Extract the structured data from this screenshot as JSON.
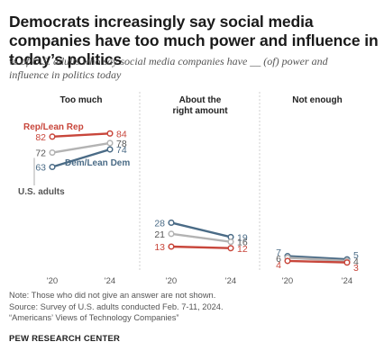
{
  "title": "Democrats increasingly say social media companies have too much power and influence in today’s politics",
  "subtitle": "% of U.S. adults who say social media companies have __ (of) power and influence in politics today",
  "note_lines": [
    "Note: Those who did not give an answer are not shown.",
    "Source: Survey of U.S. adults conducted Feb. 7-11, 2024.",
    "“Americans’ Views of Technology Companies”"
  ],
  "source_org": "PEW RESEARCH CENTER",
  "colors": {
    "rep": "#c8463b",
    "us": "#b3b3b3",
    "dem": "#4a6b86",
    "text": "#333333",
    "divider": "#cfcfcf"
  },
  "chart_data": {
    "type": "line",
    "x": [
      "'20",
      "'24"
    ],
    "ylim": [
      0,
      100
    ],
    "panels": [
      {
        "title": "Too much",
        "series": [
          {
            "name": "Rep/Lean Rep",
            "key": "rep",
            "values": [
              82,
              84
            ]
          },
          {
            "name": "U.S. adults",
            "key": "us",
            "values": [
              72,
              78
            ]
          },
          {
            "name": "Dem/Lean Dem",
            "key": "dem",
            "values": [
              63,
              74
            ]
          }
        ]
      },
      {
        "title": "About the right amount",
        "series": [
          {
            "name": "",
            "key": "dem",
            "values": [
              28,
              19
            ]
          },
          {
            "name": "",
            "key": "us",
            "values": [
              21,
              16
            ]
          },
          {
            "name": "",
            "key": "rep",
            "values": [
              13,
              12
            ]
          }
        ]
      },
      {
        "title": "Not enough",
        "series": [
          {
            "name": "",
            "key": "dem",
            "values": [
              7,
              5
            ]
          },
          {
            "name": "",
            "key": "us",
            "values": [
              6,
              4
            ]
          },
          {
            "name": "",
            "key": "rep",
            "values": [
              4,
              3
            ]
          }
        ]
      }
    ]
  }
}
